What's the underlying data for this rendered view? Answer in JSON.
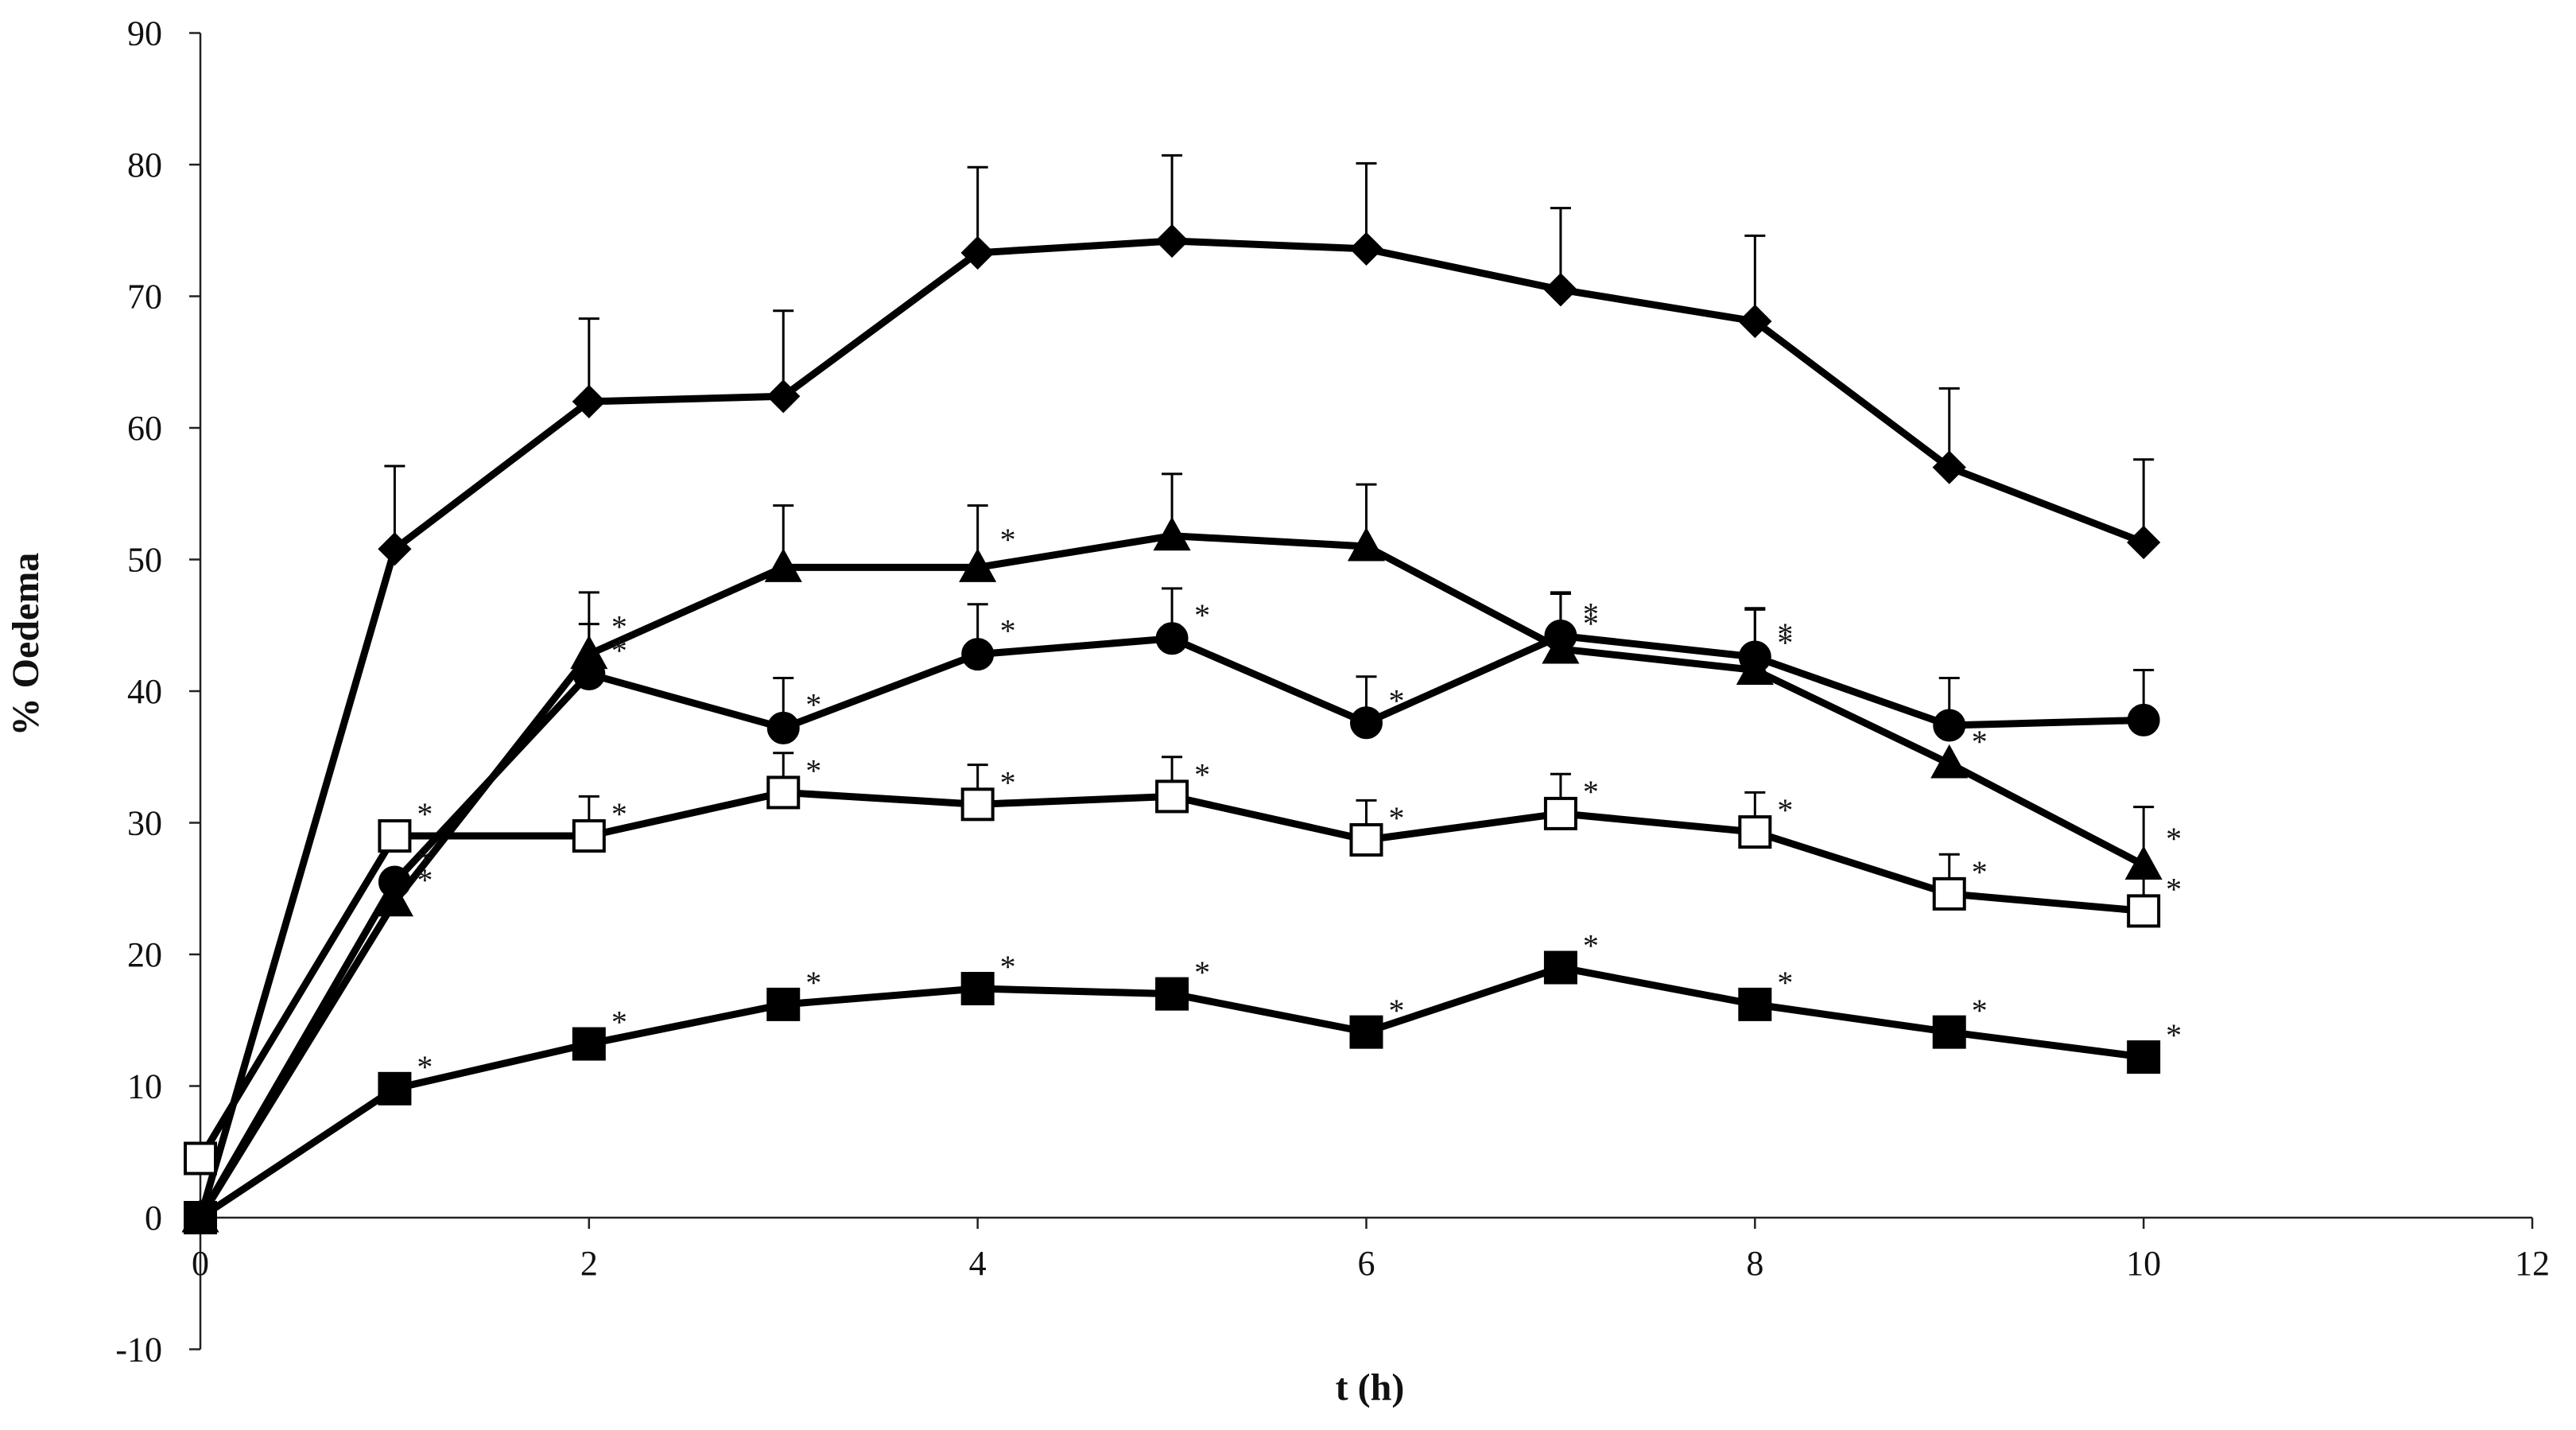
{
  "chart_data": {
    "type": "line",
    "title": "",
    "xlabel": "t (h)",
    "ylabel": "% Oedema",
    "xlim": [
      0,
      12
    ],
    "ylim": [
      -10,
      90
    ],
    "x_ticks": [
      "0",
      "2",
      "4",
      "6",
      "8",
      "10",
      "12"
    ],
    "y_ticks": [
      "-10",
      "0",
      "10",
      "20",
      "30",
      "40",
      "50",
      "60",
      "70",
      "80",
      "90"
    ],
    "grid": false,
    "legend": "none",
    "x": [
      0,
      1,
      2,
      3,
      4,
      5,
      6,
      7,
      8,
      9,
      10
    ],
    "significance_mark": "*",
    "series": [
      {
        "marker": "diamond",
        "marker_fill": "#000000",
        "values": [
          0,
          50.8,
          62.0,
          62.4,
          73.3,
          74.2,
          73.6,
          70.5,
          68.1,
          57.0,
          51.3
        ],
        "error": [
          0,
          6.3,
          6.3,
          6.5,
          6.5,
          6.5,
          6.5,
          6.2,
          6.5,
          6.0,
          6.3
        ],
        "starred": [
          false,
          false,
          false,
          false,
          false,
          false,
          false,
          false,
          false,
          false,
          false
        ]
      },
      {
        "marker": "triangle",
        "marker_fill": "#000000",
        "values": [
          0,
          24.0,
          42.8,
          49.4,
          49.4,
          51.8,
          51.0,
          43.2,
          41.6,
          34.5,
          26.8
        ],
        "error": [
          0,
          2.0,
          4.7,
          4.7,
          4.7,
          4.7,
          4.7,
          4.2,
          4.7,
          0,
          4.4
        ],
        "starred": [
          false,
          true,
          true,
          false,
          true,
          false,
          false,
          true,
          true,
          true,
          true
        ]
      },
      {
        "marker": "circle",
        "marker_fill": "#000000",
        "values": [
          0,
          25.5,
          41.3,
          37.2,
          42.8,
          44.0,
          37.6,
          44.2,
          42.6,
          37.4,
          37.8
        ],
        "error": [
          0,
          0,
          3.8,
          3.8,
          3.8,
          3.8,
          3.5,
          3.3,
          3.6,
          3.6,
          3.8
        ],
        "starred": [
          false,
          true,
          true,
          true,
          true,
          true,
          true,
          true,
          true,
          false,
          false
        ]
      },
      {
        "marker": "square",
        "marker_fill": "#ffffff",
        "values": [
          4.5,
          29.0,
          29.0,
          32.3,
          31.4,
          32.0,
          28.7,
          30.7,
          29.3,
          24.6,
          23.3
        ],
        "error": [
          0,
          0,
          3.0,
          3.0,
          3.0,
          3.0,
          3.0,
          3.0,
          3.0,
          3.0,
          3.0
        ],
        "starred": [
          false,
          true,
          true,
          true,
          true,
          true,
          true,
          true,
          true,
          true,
          true
        ]
      },
      {
        "marker": "square",
        "marker_fill": "#000000",
        "values": [
          0,
          9.8,
          13.2,
          16.2,
          17.4,
          17.0,
          14.1,
          19.0,
          16.2,
          14.1,
          12.2
        ],
        "error": [
          0,
          0,
          0,
          0,
          0,
          0,
          0,
          0,
          0,
          0,
          0
        ],
        "starred": [
          false,
          true,
          true,
          true,
          true,
          true,
          true,
          true,
          true,
          true,
          true
        ]
      }
    ]
  }
}
